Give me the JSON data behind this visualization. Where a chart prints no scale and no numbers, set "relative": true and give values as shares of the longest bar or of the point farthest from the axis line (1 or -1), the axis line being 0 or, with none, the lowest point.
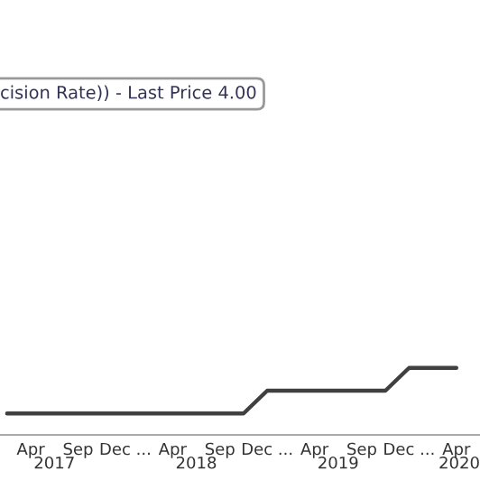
{
  "chart_data": {
    "type": "step",
    "title": "cision Rate)) - Last Price 4.00",
    "relative": true,
    "categories": [
      null,
      "Apr",
      null,
      "Sep",
      null,
      "Dec ...",
      null,
      "Apr",
      null,
      "Sep",
      null,
      "Dec ...",
      null,
      "Apr",
      null,
      "Sep",
      null,
      "Dec ...",
      null,
      "Apr"
    ],
    "series": [
      {
        "color": "#404040",
        "values": [
          0.32,
          0.32,
          0.32,
          0.32,
          0.32,
          0.32,
          0.32,
          0.32,
          0.32,
          0.32,
          0.32,
          0.66,
          0.66,
          0.66,
          0.66,
          0.66,
          0.66,
          1,
          1,
          1
        ]
      }
    ],
    "annotations": [
      "2017",
      "2018",
      "2019",
      "2020"
    ],
    "grid": false
  }
}
